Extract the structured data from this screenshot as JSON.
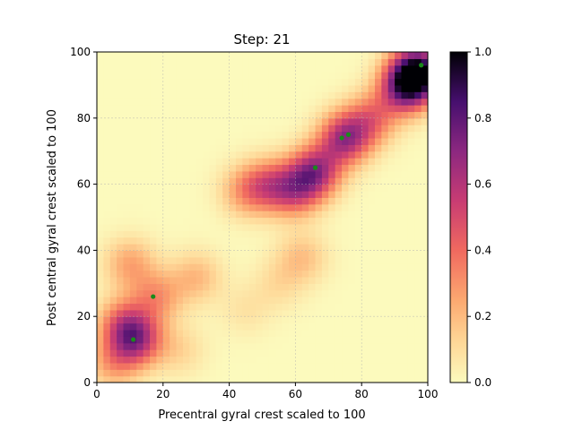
{
  "chart_data": {
    "type": "heatmap",
    "title": "Step: 21",
    "xlabel": "Precentral gyral crest scaled to 100",
    "ylabel": "Post central gyral crest scaled to 100",
    "xlim": [
      0,
      100
    ],
    "ylim": [
      0,
      100
    ],
    "xticks": [
      "0",
      "20",
      "40",
      "60",
      "80",
      "100"
    ],
    "yticks": [
      "0",
      "20",
      "40",
      "60",
      "80",
      "100"
    ],
    "grid": true,
    "colormap": "magma_r",
    "colorbar": {
      "range": [
        0.0,
        1.0
      ],
      "ticks": [
        "0.0",
        "0.2",
        "0.4",
        "0.6",
        "0.8",
        "1.0"
      ]
    },
    "density_peaks": [
      {
        "x": 97,
        "y": 94,
        "value": 0.95
      },
      {
        "x": 93,
        "y": 89,
        "value": 0.6
      },
      {
        "x": 75,
        "y": 74,
        "value": 0.62
      },
      {
        "x": 66,
        "y": 64,
        "value": 0.6
      },
      {
        "x": 60,
        "y": 58,
        "value": 0.42
      },
      {
        "x": 52,
        "y": 60,
        "value": 0.35
      },
      {
        "x": 45,
        "y": 58,
        "value": 0.25
      },
      {
        "x": 83,
        "y": 80,
        "value": 0.35
      },
      {
        "x": 12,
        "y": 13,
        "value": 0.55
      },
      {
        "x": 8,
        "y": 18,
        "value": 0.35
      },
      {
        "x": 18,
        "y": 26,
        "value": 0.28
      },
      {
        "x": 10,
        "y": 36,
        "value": 0.25
      },
      {
        "x": 30,
        "y": 32,
        "value": 0.2
      },
      {
        "x": 5,
        "y": 6,
        "value": 0.25
      },
      {
        "x": 25,
        "y": 10,
        "value": 0.12
      },
      {
        "x": 62,
        "y": 38,
        "value": 0.18
      },
      {
        "x": 55,
        "y": 30,
        "value": 0.1
      },
      {
        "x": 45,
        "y": 22,
        "value": 0.08
      }
    ],
    "points": [
      {
        "x": 11,
        "y": 13
      },
      {
        "x": 17,
        "y": 26
      },
      {
        "x": 66,
        "y": 65
      },
      {
        "x": 74,
        "y": 74
      },
      {
        "x": 76,
        "y": 75
      },
      {
        "x": 98,
        "y": 96
      }
    ],
    "point_color": "#1a8a1a"
  }
}
